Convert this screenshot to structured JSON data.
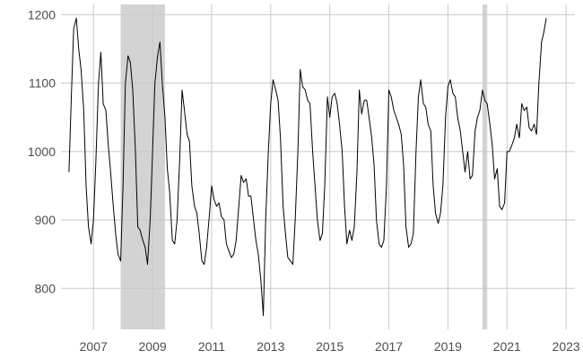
{
  "chart_data": {
    "type": "line",
    "title": "",
    "xlabel": "",
    "ylabel": "",
    "xlim": [
      2005.9,
      2023.3
    ],
    "ylim": [
      740,
      1215
    ],
    "x_ticks": [
      {
        "value": 2007,
        "label": "2007"
      },
      {
        "value": 2009,
        "label": "2009"
      },
      {
        "value": 2011,
        "label": "2011"
      },
      {
        "value": 2013,
        "label": "2013"
      },
      {
        "value": 2015,
        "label": "2015"
      },
      {
        "value": 2017,
        "label": "2017"
      },
      {
        "value": 2019,
        "label": "2019"
      },
      {
        "value": 2021,
        "label": "2021"
      },
      {
        "value": 2023,
        "label": "2023"
      }
    ],
    "y_ticks": [
      {
        "value": 800,
        "label": "800"
      },
      {
        "value": 900,
        "label": "900"
      },
      {
        "value": 1000,
        "label": "1000"
      },
      {
        "value": 1100,
        "label": "1100"
      },
      {
        "value": 1200,
        "label": "1200"
      }
    ],
    "grid": true,
    "legend": "none",
    "shaded_periods": [
      {
        "start": 2007.92,
        "end": 2009.42
      },
      {
        "start": 2020.17,
        "end": 2020.33
      }
    ],
    "colors": {
      "line": "#000000",
      "shade": "#d3d3d3",
      "grid": "#c8c8c8",
      "tick_text": "#4d4d4d",
      "background": "#ffffff"
    },
    "series": [
      {
        "values": [
          [
            2006.17,
            970
          ],
          [
            2006.25,
            1080
          ],
          [
            2006.33,
            1180
          ],
          [
            2006.42,
            1195
          ],
          [
            2006.5,
            1150
          ],
          [
            2006.58,
            1120
          ],
          [
            2006.67,
            1060
          ],
          [
            2006.75,
            950
          ],
          [
            2006.83,
            890
          ],
          [
            2006.92,
            865
          ],
          [
            2007.0,
            900
          ],
          [
            2007.08,
            985
          ],
          [
            2007.17,
            1100
          ],
          [
            2007.25,
            1145
          ],
          [
            2007.33,
            1070
          ],
          [
            2007.42,
            1060
          ],
          [
            2007.5,
            1010
          ],
          [
            2007.58,
            970
          ],
          [
            2007.67,
            920
          ],
          [
            2007.75,
            880
          ],
          [
            2007.83,
            850
          ],
          [
            2007.92,
            840
          ],
          [
            2008.0,
            950
          ],
          [
            2008.08,
            1100
          ],
          [
            2008.17,
            1140
          ],
          [
            2008.25,
            1130
          ],
          [
            2008.33,
            1090
          ],
          [
            2008.42,
            1000
          ],
          [
            2008.5,
            890
          ],
          [
            2008.58,
            885
          ],
          [
            2008.67,
            870
          ],
          [
            2008.75,
            860
          ],
          [
            2008.83,
            835
          ],
          [
            2008.92,
            900
          ],
          [
            2009.0,
            1000
          ],
          [
            2009.08,
            1100
          ],
          [
            2009.17,
            1140
          ],
          [
            2009.25,
            1160
          ],
          [
            2009.33,
            1100
          ],
          [
            2009.42,
            1050
          ],
          [
            2009.5,
            975
          ],
          [
            2009.58,
            940
          ],
          [
            2009.67,
            870
          ],
          [
            2009.75,
            865
          ],
          [
            2009.83,
            900
          ],
          [
            2009.92,
            990
          ],
          [
            2010.0,
            1090
          ],
          [
            2010.08,
            1060
          ],
          [
            2010.17,
            1025
          ],
          [
            2010.25,
            1015
          ],
          [
            2010.33,
            950
          ],
          [
            2010.42,
            920
          ],
          [
            2010.5,
            910
          ],
          [
            2010.58,
            880
          ],
          [
            2010.67,
            840
          ],
          [
            2010.75,
            835
          ],
          [
            2010.83,
            860
          ],
          [
            2010.92,
            905
          ],
          [
            2011.0,
            950
          ],
          [
            2011.08,
            930
          ],
          [
            2011.17,
            920
          ],
          [
            2011.25,
            925
          ],
          [
            2011.33,
            905
          ],
          [
            2011.42,
            900
          ],
          [
            2011.5,
            865
          ],
          [
            2011.58,
            855
          ],
          [
            2011.67,
            845
          ],
          [
            2011.75,
            850
          ],
          [
            2011.83,
            870
          ],
          [
            2011.92,
            920
          ],
          [
            2012.0,
            965
          ],
          [
            2012.08,
            955
          ],
          [
            2012.17,
            960
          ],
          [
            2012.25,
            935
          ],
          [
            2012.33,
            935
          ],
          [
            2012.42,
            900
          ],
          [
            2012.5,
            870
          ],
          [
            2012.58,
            850
          ],
          [
            2012.67,
            810
          ],
          [
            2012.75,
            760
          ],
          [
            2012.83,
            900
          ],
          [
            2012.92,
            1000
          ],
          [
            2013.0,
            1070
          ],
          [
            2013.08,
            1105
          ],
          [
            2013.17,
            1090
          ],
          [
            2013.25,
            1075
          ],
          [
            2013.33,
            1020
          ],
          [
            2013.42,
            920
          ],
          [
            2013.5,
            880
          ],
          [
            2013.58,
            845
          ],
          [
            2013.67,
            840
          ],
          [
            2013.75,
            835
          ],
          [
            2013.83,
            900
          ],
          [
            2013.92,
            1000
          ],
          [
            2014.0,
            1120
          ],
          [
            2014.08,
            1095
          ],
          [
            2014.17,
            1090
          ],
          [
            2014.25,
            1075
          ],
          [
            2014.33,
            1070
          ],
          [
            2014.42,
            1000
          ],
          [
            2014.5,
            950
          ],
          [
            2014.58,
            900
          ],
          [
            2014.67,
            870
          ],
          [
            2014.75,
            880
          ],
          [
            2014.83,
            950
          ],
          [
            2014.92,
            1080
          ],
          [
            2015.0,
            1050
          ],
          [
            2015.08,
            1080
          ],
          [
            2015.17,
            1085
          ],
          [
            2015.25,
            1070
          ],
          [
            2015.33,
            1040
          ],
          [
            2015.42,
            1000
          ],
          [
            2015.5,
            920
          ],
          [
            2015.58,
            865
          ],
          [
            2015.67,
            885
          ],
          [
            2015.75,
            870
          ],
          [
            2015.83,
            890
          ],
          [
            2015.92,
            970
          ],
          [
            2016.0,
            1090
          ],
          [
            2016.08,
            1055
          ],
          [
            2016.17,
            1075
          ],
          [
            2016.25,
            1075
          ],
          [
            2016.33,
            1050
          ],
          [
            2016.42,
            1020
          ],
          [
            2016.5,
            980
          ],
          [
            2016.58,
            900
          ],
          [
            2016.67,
            865
          ],
          [
            2016.75,
            860
          ],
          [
            2016.83,
            870
          ],
          [
            2016.92,
            950
          ],
          [
            2017.0,
            1090
          ],
          [
            2017.08,
            1080
          ],
          [
            2017.17,
            1060
          ],
          [
            2017.25,
            1050
          ],
          [
            2017.33,
            1040
          ],
          [
            2017.42,
            1025
          ],
          [
            2017.5,
            980
          ],
          [
            2017.58,
            890
          ],
          [
            2017.67,
            860
          ],
          [
            2017.75,
            865
          ],
          [
            2017.83,
            880
          ],
          [
            2017.92,
            1000
          ],
          [
            2018.0,
            1080
          ],
          [
            2018.08,
            1105
          ],
          [
            2018.17,
            1070
          ],
          [
            2018.25,
            1065
          ],
          [
            2018.33,
            1040
          ],
          [
            2018.42,
            1030
          ],
          [
            2018.5,
            950
          ],
          [
            2018.58,
            910
          ],
          [
            2018.67,
            895
          ],
          [
            2018.75,
            910
          ],
          [
            2018.83,
            950
          ],
          [
            2018.92,
            1050
          ],
          [
            2019.0,
            1095
          ],
          [
            2019.08,
            1105
          ],
          [
            2019.17,
            1085
          ],
          [
            2019.25,
            1080
          ],
          [
            2019.33,
            1050
          ],
          [
            2019.42,
            1030
          ],
          [
            2019.5,
            1000
          ],
          [
            2019.58,
            970
          ],
          [
            2019.67,
            1000
          ],
          [
            2019.75,
            960
          ],
          [
            2019.83,
            965
          ],
          [
            2019.92,
            1030
          ],
          [
            2020.0,
            1050
          ],
          [
            2020.08,
            1060
          ],
          [
            2020.17,
            1090
          ],
          [
            2020.25,
            1075
          ],
          [
            2020.33,
            1070
          ],
          [
            2020.42,
            1040
          ],
          [
            2020.5,
            1010
          ],
          [
            2020.58,
            960
          ],
          [
            2020.67,
            975
          ],
          [
            2020.75,
            920
          ],
          [
            2020.83,
            915
          ],
          [
            2020.92,
            925
          ],
          [
            2021.0,
            1000
          ],
          [
            2021.08,
            1000
          ],
          [
            2021.17,
            1010
          ],
          [
            2021.25,
            1020
          ],
          [
            2021.33,
            1040
          ],
          [
            2021.42,
            1020
          ],
          [
            2021.5,
            1070
          ],
          [
            2021.58,
            1060
          ],
          [
            2021.67,
            1065
          ],
          [
            2021.75,
            1035
          ],
          [
            2021.83,
            1030
          ],
          [
            2021.92,
            1040
          ],
          [
            2022.0,
            1025
          ],
          [
            2022.08,
            1100
          ],
          [
            2022.17,
            1160
          ],
          [
            2022.25,
            1175
          ],
          [
            2022.33,
            1195
          ]
        ]
      }
    ]
  }
}
